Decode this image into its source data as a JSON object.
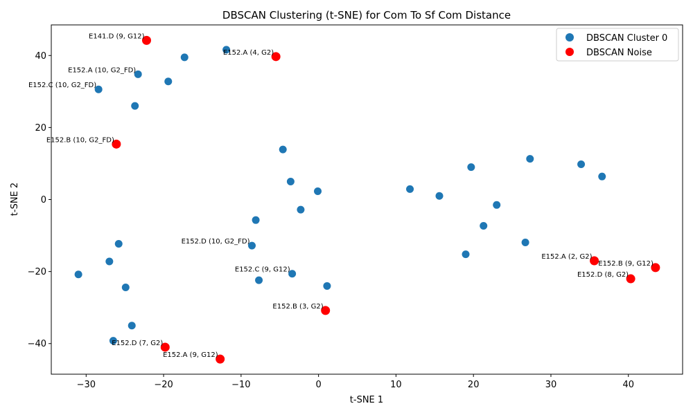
{
  "chart_data": {
    "type": "scatter",
    "title": "DBSCAN Clustering (t-SNE) for Com To Sf Com Distance",
    "xlabel": "t-SNE 1",
    "ylabel": "t-SNE 2",
    "xlim": [
      -34.5,
      47
    ],
    "ylim": [
      -48.5,
      48.5
    ],
    "xticks": [
      -30,
      -20,
      -10,
      0,
      10,
      20,
      30,
      40
    ],
    "yticks": [
      -40,
      -20,
      0,
      20,
      40
    ],
    "grid": false,
    "legend_position": "top-right",
    "series": [
      {
        "name": "DBSCAN Cluster 0",
        "color": "#1f77b4",
        "points": [
          {
            "x": -11.9,
            "y": 41.6,
            "label": ""
          },
          {
            "x": -17.3,
            "y": 39.5,
            "label": ""
          },
          {
            "x": -23.3,
            "y": 34.8,
            "label": "E152.A (10, G2_FD)"
          },
          {
            "x": -19.4,
            "y": 32.8,
            "label": ""
          },
          {
            "x": -28.4,
            "y": 30.6,
            "label": "E152.C (10, G2_FD)"
          },
          {
            "x": -23.7,
            "y": 26.0,
            "label": ""
          },
          {
            "x": -4.6,
            "y": 13.9,
            "label": ""
          },
          {
            "x": -3.6,
            "y": 5.0,
            "label": ""
          },
          {
            "x": -0.1,
            "y": 2.3,
            "label": ""
          },
          {
            "x": -2.3,
            "y": -2.8,
            "label": ""
          },
          {
            "x": -8.1,
            "y": -5.7,
            "label": ""
          },
          {
            "x": -8.6,
            "y": -12.8,
            "label": "E152.D (10, G2_FD)"
          },
          {
            "x": -25.8,
            "y": -12.3,
            "label": ""
          },
          {
            "x": -27.0,
            "y": -17.2,
            "label": ""
          },
          {
            "x": -31.0,
            "y": -20.8,
            "label": ""
          },
          {
            "x": -24.9,
            "y": -24.4,
            "label": ""
          },
          {
            "x": -7.7,
            "y": -22.4,
            "label": ""
          },
          {
            "x": -3.4,
            "y": -20.6,
            "label": "E152.C (9, G12)"
          },
          {
            "x": 1.1,
            "y": -24.0,
            "label": ""
          },
          {
            "x": -24.1,
            "y": -35.0,
            "label": ""
          },
          {
            "x": -26.5,
            "y": -39.2,
            "label": ""
          },
          {
            "x": 11.8,
            "y": 2.9,
            "label": ""
          },
          {
            "x": 15.6,
            "y": 1.0,
            "label": ""
          },
          {
            "x": 19.7,
            "y": 9.0,
            "label": ""
          },
          {
            "x": 23.0,
            "y": -1.5,
            "label": ""
          },
          {
            "x": 21.3,
            "y": -7.3,
            "label": ""
          },
          {
            "x": 27.3,
            "y": 11.3,
            "label": ""
          },
          {
            "x": 33.9,
            "y": 9.8,
            "label": ""
          },
          {
            "x": 36.6,
            "y": 6.4,
            "label": ""
          },
          {
            "x": 26.7,
            "y": -11.9,
            "label": ""
          },
          {
            "x": 19.0,
            "y": -15.2,
            "label": ""
          }
        ]
      },
      {
        "name": "DBSCAN Noise",
        "color": "#ff0000",
        "points": [
          {
            "x": -22.2,
            "y": 44.2,
            "label": "E141.D (9, G12)"
          },
          {
            "x": -5.5,
            "y": 39.7,
            "label": "E152.A (4, G2)"
          },
          {
            "x": -26.1,
            "y": 15.4,
            "label": "E152.B (10, G2_FD)"
          },
          {
            "x": 35.6,
            "y": -17.0,
            "label": "E152.A (2, G2)"
          },
          {
            "x": 43.5,
            "y": -18.9,
            "label": "E152.B (9, G12)"
          },
          {
            "x": 40.3,
            "y": -22.0,
            "label": "E152.D (8, G2)"
          },
          {
            "x": 0.9,
            "y": -30.8,
            "label": "E152.B (3, G2)"
          },
          {
            "x": -19.8,
            "y": -41.0,
            "label": "E152.D (7, G2)"
          },
          {
            "x": -12.7,
            "y": -44.3,
            "label": "E152.A (9, G12)"
          }
        ]
      }
    ]
  }
}
